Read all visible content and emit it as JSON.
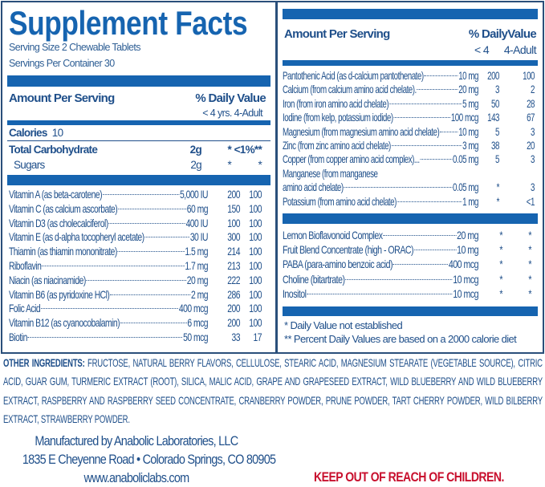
{
  "colors": {
    "brand_blue": "#1664b0",
    "text_blue": "#1f4f8a",
    "warning_red": "#c8102e"
  },
  "title": "Supplement Facts",
  "serving_size": "Serving Size 2 Chewable Tablets",
  "servings_per_container": "Servings Per Container 30",
  "left": {
    "amount_header": "Amount Per Serving",
    "dv_header": "% Daily Value",
    "dv_sub": "< 4 yrs.  4-Adult",
    "calories_label": "Calories",
    "calories_value": "10",
    "macros": [
      {
        "name": "Total Carbohydrate",
        "amount": "2g",
        "dv1": "*",
        "dv2": "<1%**"
      },
      {
        "name": "Sugars",
        "amount": "2g",
        "dv1": "*",
        "dv2": "*"
      }
    ],
    "rows": [
      {
        "name": "Vitamin A (as beta-carotene)",
        "amount": "5,000 IU",
        "dv1": "200",
        "dv2": "100"
      },
      {
        "name": "Vitamin C (as calcium ascorbate)",
        "amount": "60 mg",
        "dv1": "150",
        "dv2": "100"
      },
      {
        "name": "Vitamin D3 (as cholecalciferol)",
        "amount": "400 IU",
        "dv1": "100",
        "dv2": "100"
      },
      {
        "name": "Vitamin E (as d-alpha tocopheryl acetate)",
        "amount": "30 IU",
        "dv1": "300",
        "dv2": "100"
      },
      {
        "name": "Thiamin (as thiamin mononitrate)",
        "amount": "1.5 mg",
        "dv1": "214",
        "dv2": "100"
      },
      {
        "name": "Riboflavin",
        "amount": "1.7 mg",
        "dv1": "213",
        "dv2": "100"
      },
      {
        "name": "Niacin (as niacinamide)",
        "amount": "20 mg",
        "dv1": "222",
        "dv2": "100"
      },
      {
        "name": "Vitamin B6 (as pyridoxine HCl)",
        "amount": "2 mg",
        "dv1": "286",
        "dv2": "100"
      },
      {
        "name": "Folic Acid",
        "amount": "400 mcg",
        "dv1": "200",
        "dv2": "100"
      },
      {
        "name": "Vitamin B12 (as cyanocobalamin)",
        "amount": "6 mcg",
        "dv1": "200",
        "dv2": "100"
      },
      {
        "name": "Biotin",
        "amount": "50 mcg",
        "dv1": "33",
        "dv2": "17"
      }
    ]
  },
  "right": {
    "amount_header": "Amount Per Serving",
    "dv_header": "% DailyValue",
    "dv_sub1": "< 4",
    "dv_sub2": "4-Adult",
    "minerals": [
      {
        "name": "Pantothenic Acid (as d-calcium pantothenate)",
        "amount": "10 mg",
        "dv1": "200",
        "dv2": "100"
      },
      {
        "name": "Calcium (from calcium amino acid chelate).",
        "amount": "20 mg",
        "dv1": "3",
        "dv2": "2"
      },
      {
        "name": "Iron (from iron amino acid chelate)",
        "amount": "5 mg",
        "dv1": "50",
        "dv2": "28"
      },
      {
        "name": "Iodine (from kelp, potassium iodide)",
        "amount": "100 mcg",
        "dv1": "143",
        "dv2": "67"
      },
      {
        "name": "Magnesium (from magnesium amino acid chelate)",
        "amount": "10 mg",
        "dv1": "5",
        "dv2": "3"
      },
      {
        "name": "Zinc (from zinc amino acid chelate)",
        "amount": "3 mg",
        "dv1": "38",
        "dv2": "20"
      },
      {
        "name": "Copper (from copper amino acid complex)...",
        "amount": "0.05 mg",
        "dv1": "5",
        "dv2": "3"
      },
      {
        "name": "Manganese (from manganese",
        "amount": "",
        "dv1": "",
        "dv2": ""
      },
      {
        "name": "amino acid chelate)",
        "amount": "0.05 mg",
        "dv1": "*",
        "dv2": "3"
      },
      {
        "name": "Potassium (from amino acid chelate)",
        "amount": "1 mg",
        "dv1": "*",
        "dv2": "<1"
      }
    ],
    "others": [
      {
        "name": "Lemon Bioflavonoid Complex",
        "amount": "20 mg",
        "dv1": "*",
        "dv2": "*"
      },
      {
        "name": "Fruit Blend Concentrate (high - ORAC)",
        "amount": "10 mg",
        "dv1": "*",
        "dv2": "*"
      },
      {
        "name": "PABA (para-amino benzoic acid)",
        "amount": "400 mcg",
        "dv1": "*",
        "dv2": "*"
      },
      {
        "name": "Choline (bitartrate)",
        "amount": "10 mcg",
        "dv1": "*",
        "dv2": "*"
      },
      {
        "name": "Inositol",
        "amount": "10 mcg",
        "dv1": "*",
        "dv2": "*"
      }
    ],
    "footnote1": "*  Daily Value not established",
    "footnote2": "** Percent Daily Values are based on a 2000 calorie diet"
  },
  "other_ingredients_label": "OTHER INGREDIENTS:",
  "other_ingredients": "FRUCTOSE, NATURAL BERRY FLAVORS, CELLULOSE, STEARIC ACID, MAGNESIUM STEARATE (VEGETABLE SOURCE), CITRIC ACID, GUAR GUM, TURMERIC EXTRACT (ROOT), SILICA, MALIC ACID, GRAPE AND GRAPESEED EXTRACT, WILD BLUEBERRY AND WILD BLUEBERRY EXTRACT, RASPBERRY AND RASPBERRY SEED CONCENTRATE, CRANBERRY POWDER, PRUNE POWDER, TART CHERRY POWDER, WILD BILBERRY EXTRACT, STRAWBERRY POWDER.",
  "manufacturer": "Manufactured by Anabolic Laboratories, LLC",
  "address": "1835 E Cheyenne Road • Colorado Springs, CO 80905",
  "website": "www.anaboliclabs.com",
  "warning": "KEEP OUT OF REACH OF CHILDREN."
}
